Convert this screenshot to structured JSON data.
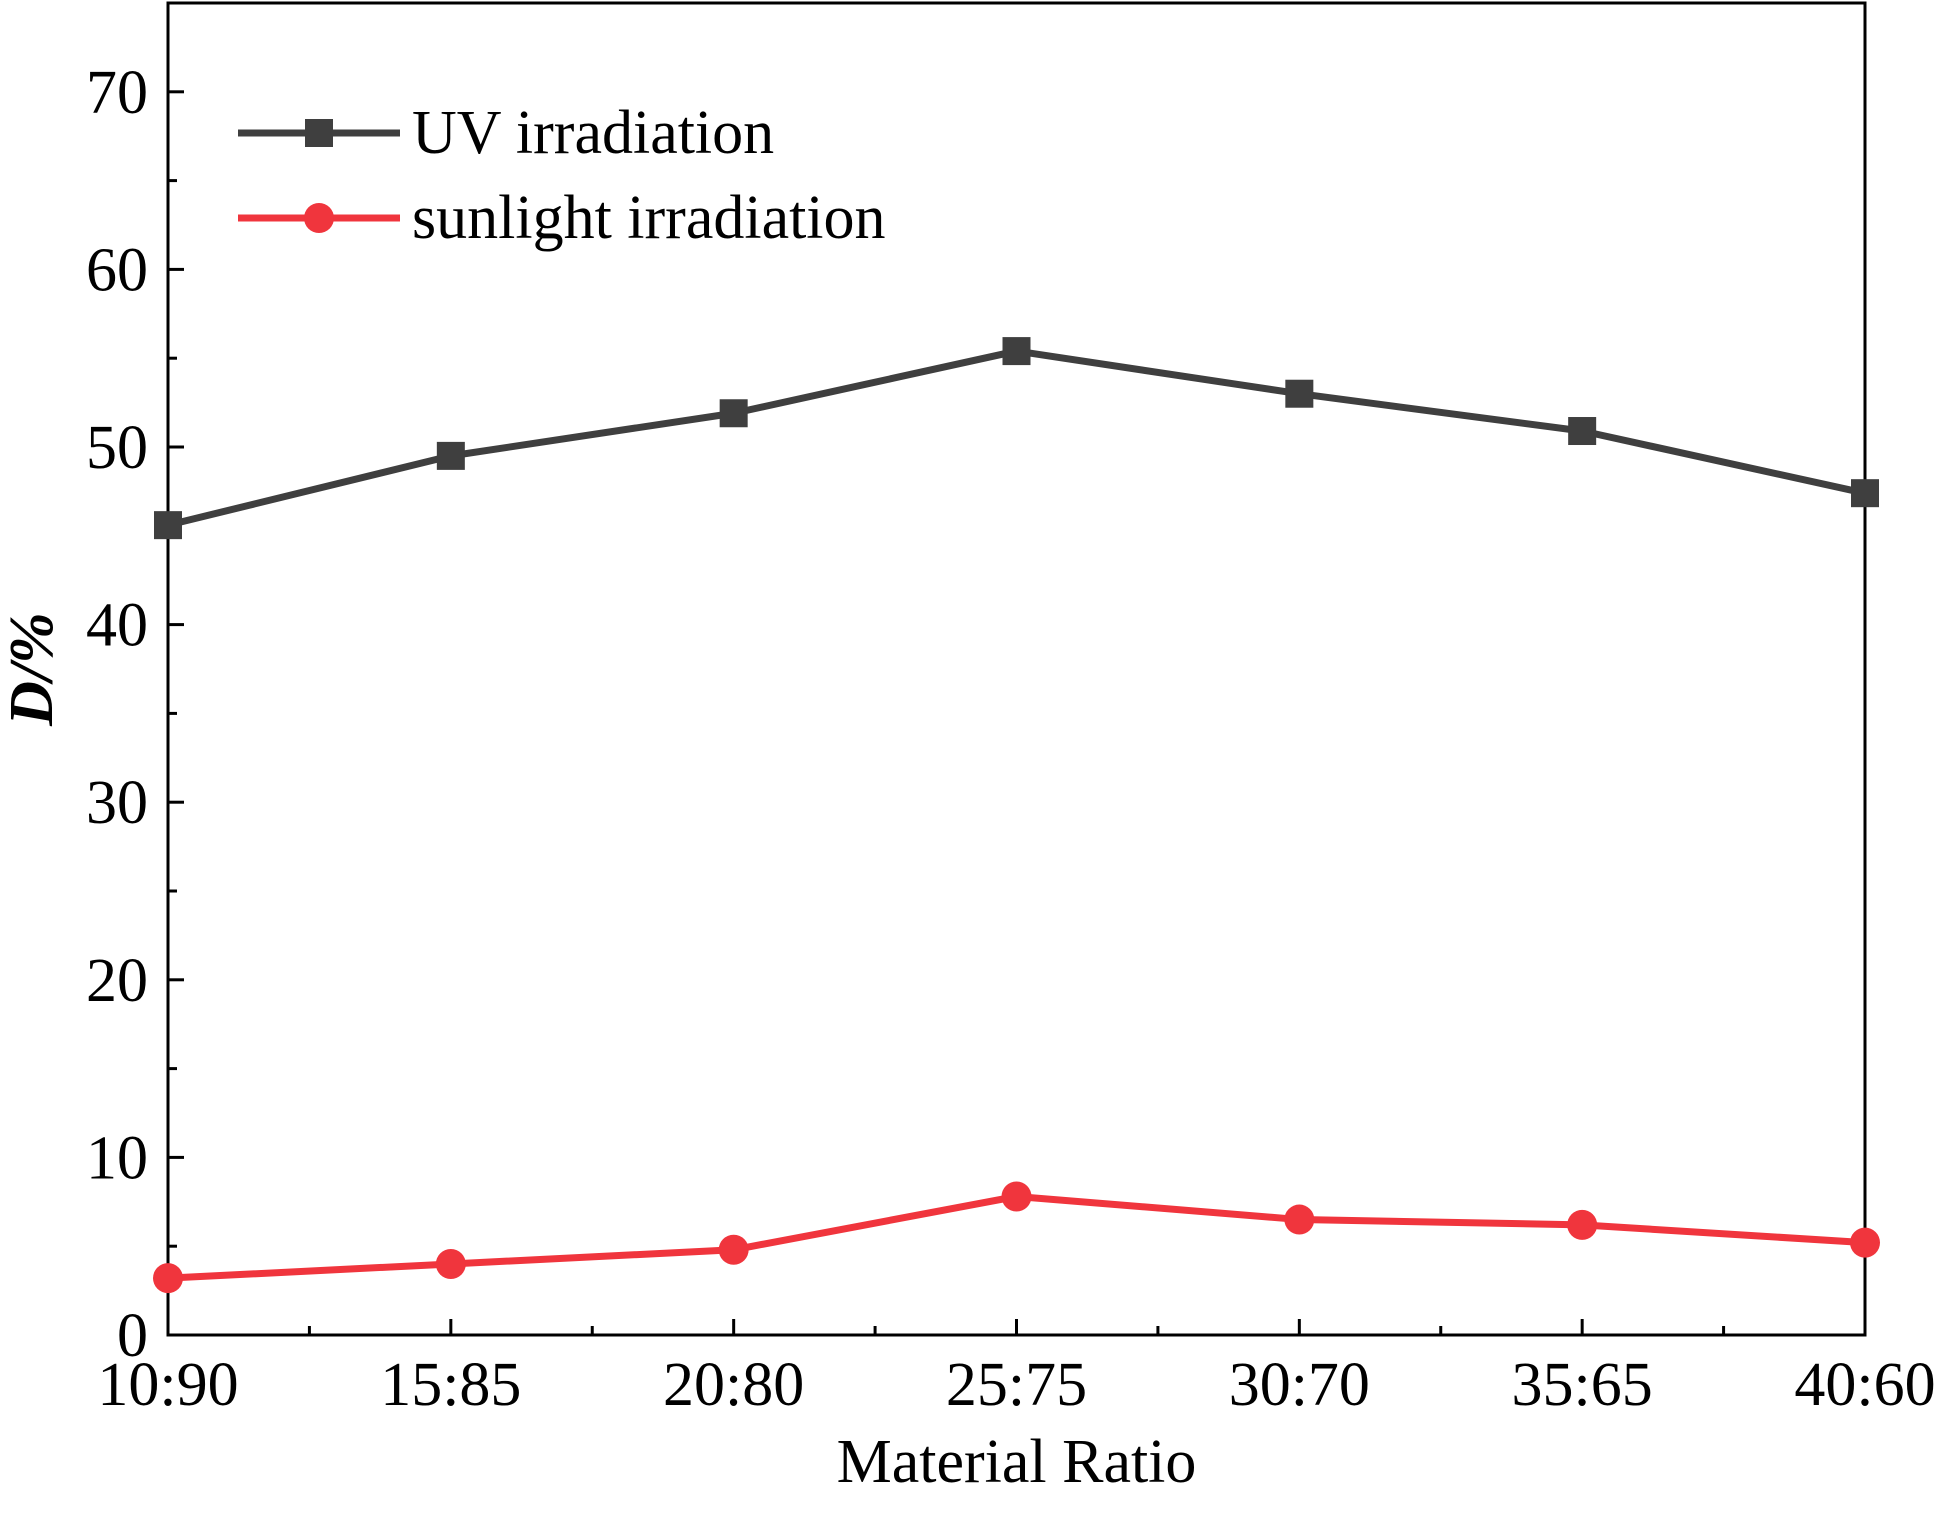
{
  "chart_data": {
    "type": "line",
    "title": "",
    "xlabel": "Material Ratio",
    "ylabel": "D/%",
    "categories": [
      "10:90",
      "15:85",
      "20:80",
      "25:75",
      "30:70",
      "35:65",
      "40:60"
    ],
    "ylim": [
      0,
      75
    ],
    "yticks": [
      0,
      10,
      20,
      30,
      40,
      50,
      60,
      70
    ],
    "grid": false,
    "legend_position": "top-left",
    "series": [
      {
        "name": "UV irradiation",
        "marker": "square",
        "color": "#3f3f3f",
        "values": [
          45.6,
          49.5,
          51.9,
          55.4,
          53.0,
          50.9,
          47.4
        ]
      },
      {
        "name": "sunlight irradiation",
        "marker": "circle",
        "color": "#f0353d",
        "values": [
          3.2,
          4.0,
          4.8,
          7.8,
          6.5,
          6.2,
          5.2
        ]
      }
    ]
  }
}
